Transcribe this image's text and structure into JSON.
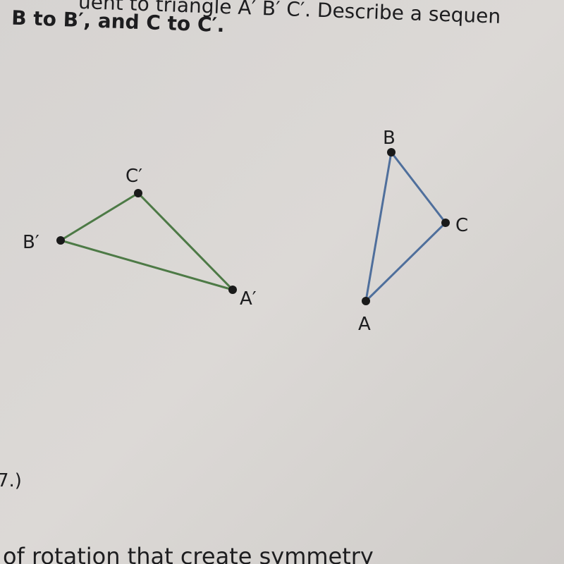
{
  "header": {
    "line1": "uent to triangle A′ B′ C′. Describe a sequen",
    "line2": "B to B′, and C to C′."
  },
  "figure": {
    "triangle_prime": {
      "A": "A′",
      "B": "B′",
      "C": "C′"
    },
    "triangle": {
      "A": "A",
      "B": "B",
      "C": "C"
    }
  },
  "footer": {
    "problem_number": "7.)",
    "line": "of rotation that create symmetry"
  }
}
